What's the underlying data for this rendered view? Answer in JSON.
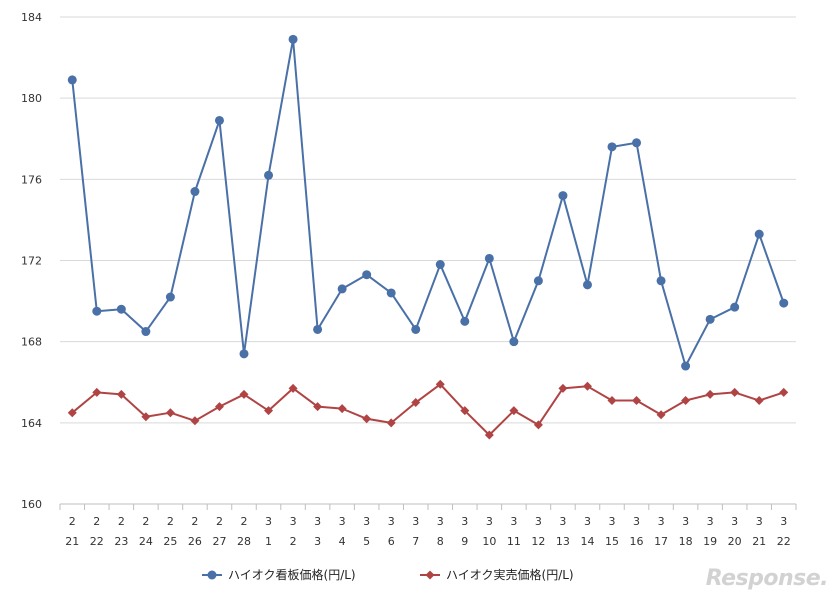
{
  "chart_data": {
    "type": "line",
    "title": "",
    "xlabel": "",
    "ylabel": "",
    "ylim": [
      160,
      184
    ],
    "yticks": [
      160,
      164,
      168,
      172,
      176,
      180,
      184
    ],
    "grid": true,
    "legend_position": "bottom",
    "categories": [
      [
        "2",
        "21"
      ],
      [
        "2",
        "22"
      ],
      [
        "2",
        "23"
      ],
      [
        "2",
        "24"
      ],
      [
        "2",
        "25"
      ],
      [
        "2",
        "26"
      ],
      [
        "2",
        "27"
      ],
      [
        "2",
        "28"
      ],
      [
        "3",
        "1"
      ],
      [
        "3",
        "2"
      ],
      [
        "3",
        "3"
      ],
      [
        "3",
        "4"
      ],
      [
        "3",
        "5"
      ],
      [
        "3",
        "6"
      ],
      [
        "3",
        "7"
      ],
      [
        "3",
        "8"
      ],
      [
        "3",
        "9"
      ],
      [
        "3",
        "10"
      ],
      [
        "3",
        "11"
      ],
      [
        "3",
        "12"
      ],
      [
        "3",
        "13"
      ],
      [
        "3",
        "14"
      ],
      [
        "3",
        "15"
      ],
      [
        "3",
        "16"
      ],
      [
        "3",
        "17"
      ],
      [
        "3",
        "18"
      ],
      [
        "3",
        "19"
      ],
      [
        "3",
        "20"
      ],
      [
        "3",
        "21"
      ],
      [
        "3",
        "22"
      ]
    ],
    "series": [
      {
        "name": "ハイオク看板価格(円/L)",
        "color": "#4a70a8",
        "marker": "circle",
        "values": [
          180.9,
          169.5,
          169.6,
          168.5,
          170.2,
          175.4,
          178.9,
          167.4,
          176.2,
          182.9,
          168.6,
          170.6,
          171.3,
          170.4,
          168.6,
          171.8,
          169.0,
          172.1,
          168.0,
          171.0,
          175.2,
          170.8,
          177.6,
          177.8,
          171.0,
          166.8,
          169.1,
          169.7,
          173.3,
          169.9
        ]
      },
      {
        "name": "ハイオク実売価格(円/L)",
        "color": "#b04444",
        "marker": "diamond",
        "values": [
          164.5,
          165.5,
          165.4,
          164.3,
          164.5,
          164.1,
          164.8,
          165.4,
          164.6,
          165.7,
          164.8,
          164.7,
          164.2,
          164.0,
          165.0,
          165.9,
          164.6,
          163.4,
          164.6,
          163.9,
          165.7,
          165.8,
          165.1,
          165.1,
          164.4,
          165.1,
          165.4,
          165.5,
          165.1,
          165.5
        ]
      }
    ]
  },
  "watermark": "Response."
}
